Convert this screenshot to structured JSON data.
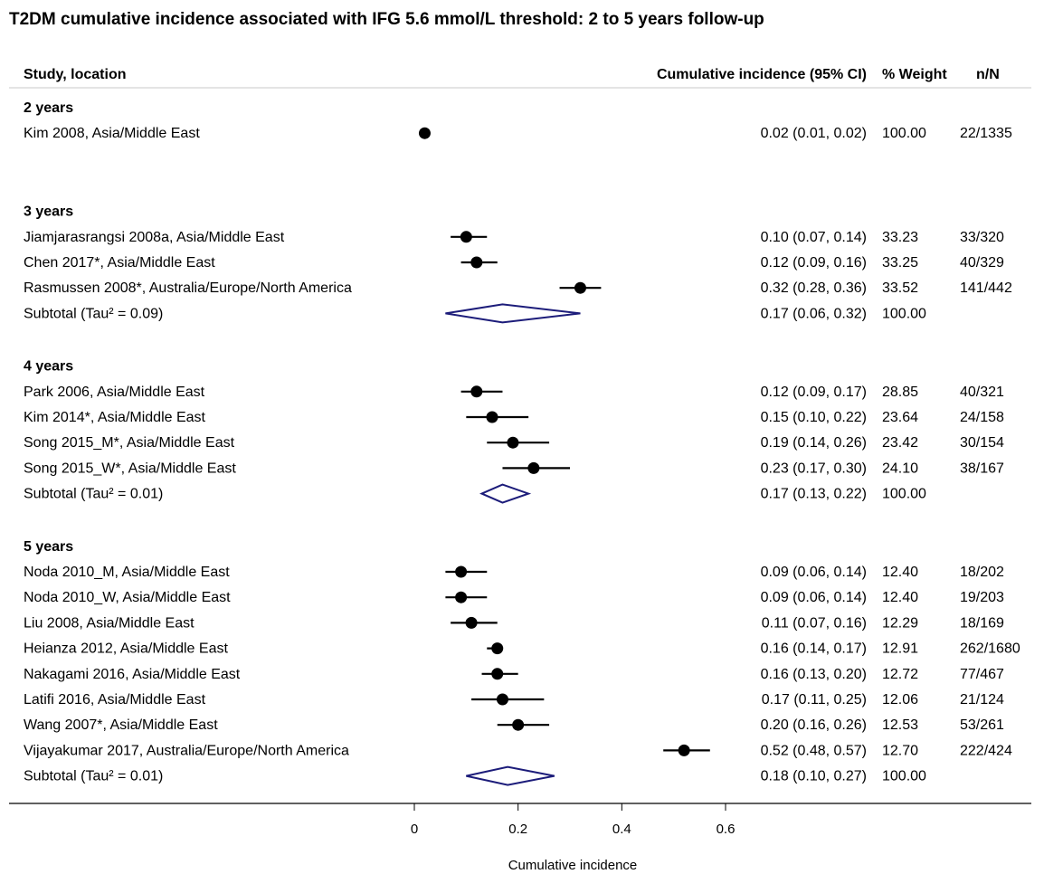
{
  "title": "T2DM cumulative incidence associated with IFG 5.6 mmol/L threshold: 2 to 5 years follow-up",
  "headers": {
    "study": "Study, location",
    "ci": "Cumulative incidence (95% CI)",
    "weight": "% Weight",
    "nn": "n/N"
  },
  "chart_data": {
    "type": "forest",
    "title": "T2DM cumulative incidence associated with IFG 5.6 mmol/L threshold: 2 to 5 years follow-up",
    "xlabel": "Cumulative incidence",
    "xlim": [
      0,
      0.6
    ],
    "xticks": [
      {
        "value": 0,
        "label": "0"
      },
      {
        "value": 0.2,
        "label": "0.2"
      },
      {
        "value": 0.4,
        "label": "0.4"
      },
      {
        "value": 0.6,
        "label": "0.6"
      }
    ],
    "colors": {
      "point": "#000000",
      "diamond": "#1c1c7a",
      "text": "#000000"
    },
    "groups": [
      {
        "label": "2 years",
        "studies": [
          {
            "name": "Kim 2008, Asia/Middle East",
            "est": 0.02,
            "lo": 0.01,
            "hi": 0.02,
            "ci_text": "0.02 (0.01, 0.02)",
            "weight": "100.00",
            "nn": "22/1335"
          }
        ]
      },
      {
        "label": "3 years",
        "studies": [
          {
            "name": "Jiamjarasrangsi 2008a, Asia/Middle East",
            "est": 0.1,
            "lo": 0.07,
            "hi": 0.14,
            "ci_text": "0.10 (0.07, 0.14)",
            "weight": "33.23",
            "nn": "33/320"
          },
          {
            "name": "Chen 2017*, Asia/Middle East",
            "est": 0.12,
            "lo": 0.09,
            "hi": 0.16,
            "ci_text": "0.12 (0.09, 0.16)",
            "weight": "33.25",
            "nn": "40/329"
          },
          {
            "name": "Rasmussen 2008*, Australia/Europe/North America",
            "est": 0.32,
            "lo": 0.28,
            "hi": 0.36,
            "ci_text": "0.32 (0.28, 0.36)",
            "weight": "33.52",
            "nn": "141/442"
          }
        ],
        "subtotal": {
          "label": "Subtotal  (Tau² = 0.09)",
          "est": 0.17,
          "lo": 0.06,
          "hi": 0.32,
          "ci_text": "0.17 (0.06, 0.32)",
          "weight": "100.00"
        }
      },
      {
        "label": "4 years",
        "studies": [
          {
            "name": "Park 2006, Asia/Middle East",
            "est": 0.12,
            "lo": 0.09,
            "hi": 0.17,
            "ci_text": "0.12 (0.09, 0.17)",
            "weight": "28.85",
            "nn": "40/321"
          },
          {
            "name": "Kim 2014*, Asia/Middle East",
            "est": 0.15,
            "lo": 0.1,
            "hi": 0.22,
            "ci_text": "0.15 (0.10, 0.22)",
            "weight": "23.64",
            "nn": "24/158"
          },
          {
            "name": "Song 2015_M*, Asia/Middle East",
            "est": 0.19,
            "lo": 0.14,
            "hi": 0.26,
            "ci_text": "0.19 (0.14, 0.26)",
            "weight": "23.42",
            "nn": "30/154"
          },
          {
            "name": "Song 2015_W*, Asia/Middle East",
            "est": 0.23,
            "lo": 0.17,
            "hi": 0.3,
            "ci_text": "0.23 (0.17, 0.30)",
            "weight": "24.10",
            "nn": "38/167"
          }
        ],
        "subtotal": {
          "label": "Subtotal  (Tau² = 0.01)",
          "est": 0.17,
          "lo": 0.13,
          "hi": 0.22,
          "ci_text": "0.17 (0.13, 0.22)",
          "weight": "100.00"
        }
      },
      {
        "label": "5 years",
        "studies": [
          {
            "name": "Noda 2010_M, Asia/Middle East",
            "est": 0.09,
            "lo": 0.06,
            "hi": 0.14,
            "ci_text": "0.09 (0.06, 0.14)",
            "weight": "12.40",
            "nn": "18/202"
          },
          {
            "name": "Noda 2010_W, Asia/Middle East",
            "est": 0.09,
            "lo": 0.06,
            "hi": 0.14,
            "ci_text": "0.09 (0.06, 0.14)",
            "weight": "12.40",
            "nn": "19/203"
          },
          {
            "name": "Liu 2008, Asia/Middle East",
            "est": 0.11,
            "lo": 0.07,
            "hi": 0.16,
            "ci_text": "0.11 (0.07, 0.16)",
            "weight": "12.29",
            "nn": "18/169"
          },
          {
            "name": "Heianza 2012, Asia/Middle East",
            "est": 0.16,
            "lo": 0.14,
            "hi": 0.17,
            "ci_text": "0.16 (0.14, 0.17)",
            "weight": "12.91",
            "nn": "262/1680"
          },
          {
            "name": "Nakagami 2016, Asia/Middle East",
            "est": 0.16,
            "lo": 0.13,
            "hi": 0.2,
            "ci_text": "0.16 (0.13, 0.20)",
            "weight": "12.72",
            "nn": "77/467"
          },
          {
            "name": "Latifi 2016, Asia/Middle East",
            "est": 0.17,
            "lo": 0.11,
            "hi": 0.25,
            "ci_text": "0.17 (0.11, 0.25)",
            "weight": "12.06",
            "nn": "21/124"
          },
          {
            "name": "Wang 2007*, Asia/Middle East",
            "est": 0.2,
            "lo": 0.16,
            "hi": 0.26,
            "ci_text": "0.20 (0.16, 0.26)",
            "weight": "12.53",
            "nn": "53/261"
          },
          {
            "name": "Vijayakumar 2017, Australia/Europe/North America",
            "est": 0.52,
            "lo": 0.48,
            "hi": 0.57,
            "ci_text": "0.52 (0.48, 0.57)",
            "weight": "12.70",
            "nn": "222/424"
          }
        ],
        "subtotal": {
          "label": "Subtotal  (Tau² = 0.01)",
          "est": 0.18,
          "lo": 0.1,
          "hi": 0.27,
          "ci_text": "0.18 (0.10, 0.27)",
          "weight": "100.00"
        }
      }
    ]
  }
}
